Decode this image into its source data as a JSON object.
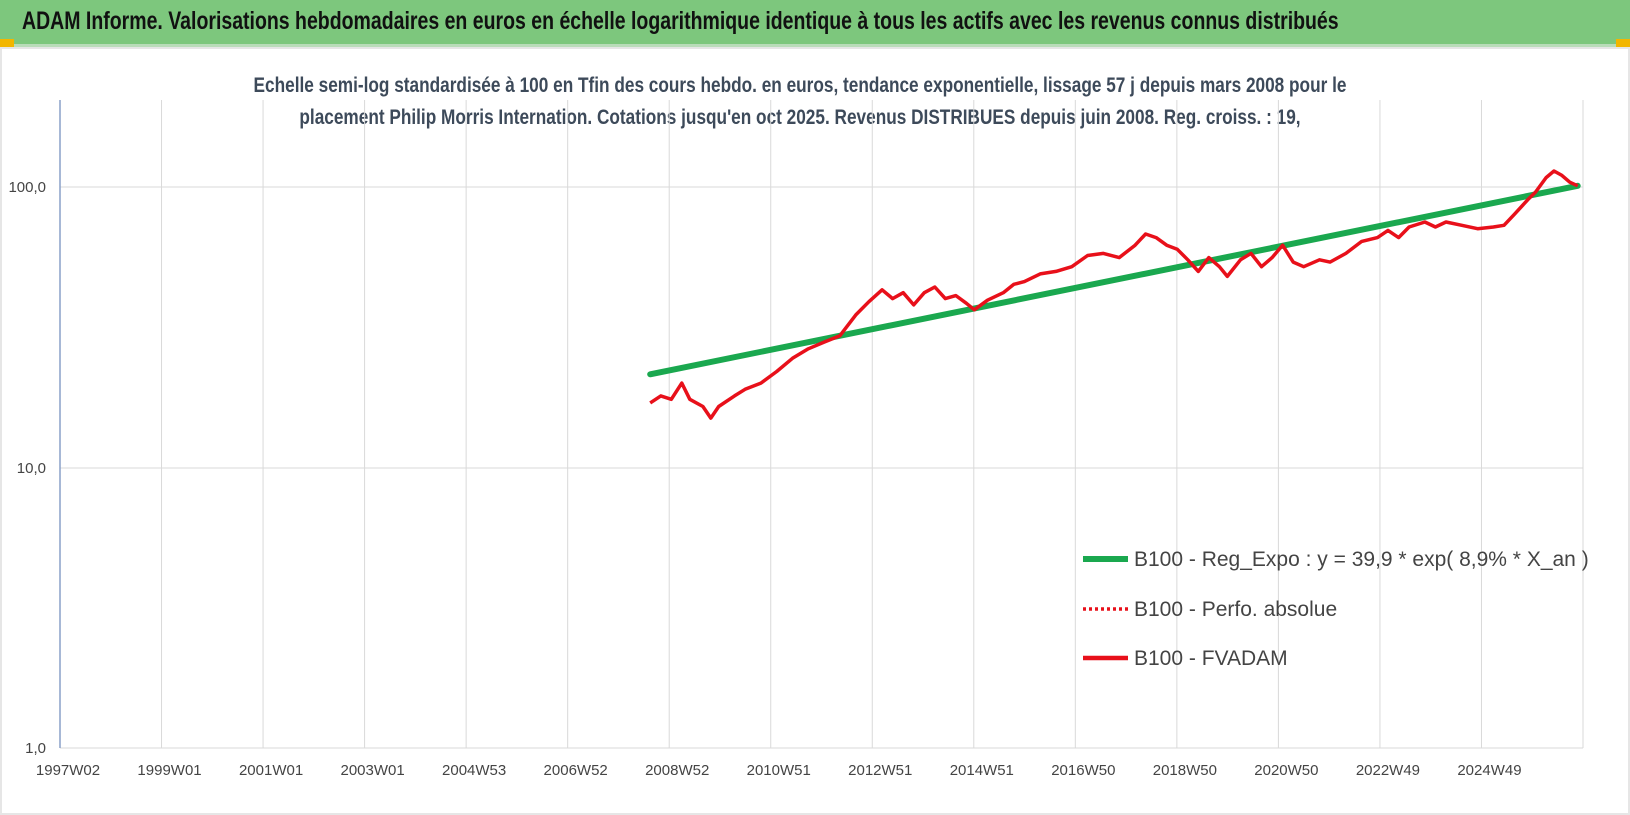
{
  "header": {
    "banner_title": "ADAM Informe. Valorisations hebdomadaires en euros en échelle logarithmique identique à tous les actifs avec les revenus connus distribués"
  },
  "colors": {
    "banner_bg": "#7dc77d",
    "trend": "#1aa84f",
    "fvadam": "#e8101a",
    "perfo": "#e8101a",
    "grid": "#d9d9d9",
    "axis": "#8aa0c8"
  },
  "chart_data": {
    "type": "line",
    "title_lines": [
      "Echelle semi-log standardisée à 100 en Tfin des cours hebdo. en euros, tendance exponentielle, lissage 57 j depuis mars 2008 pour le",
      "placement Philip Morris Internation. Cotations jusqu'en oct 2025.  Revenus DISTRIBUES depuis juin 2008. Reg. croiss. : 19,"
    ],
    "y_scale": "log",
    "ylim": [
      1,
      200
    ],
    "y_ticks": [
      "1,0",
      "10,0",
      "100,0"
    ],
    "x_range_years": [
      1997.0,
      2025.9
    ],
    "x_tick_labels": [
      "1997W02",
      "1999W01",
      "2001W01",
      "2003W01",
      "2004W53",
      "2006W52",
      "2008W52",
      "2010W51",
      "2012W51",
      "2014W51",
      "2016W50",
      "2018W50",
      "2020W50",
      "2022W49",
      "2024W49"
    ],
    "grid": "vertical and horizontal",
    "legend_position": "bottom-right",
    "series": [
      {
        "name": "B100 - Reg_Expo : y = 39,9 * exp( 8,9% *  X_an )",
        "style": "solid-thick",
        "points": [
          [
            2008.2,
            21.5
          ],
          [
            2025.8,
            101
          ]
        ]
      },
      {
        "name": "B100 - Perfo. absolue",
        "style": "dotted",
        "points": []
      },
      {
        "name": "B100 - FVADAM",
        "style": "solid",
        "points": [
          [
            2008.2,
            17.0
          ],
          [
            2008.4,
            18.0
          ],
          [
            2008.6,
            17.5
          ],
          [
            2008.8,
            20.0
          ],
          [
            2008.95,
            17.5
          ],
          [
            2009.2,
            16.5
          ],
          [
            2009.35,
            15.0
          ],
          [
            2009.5,
            16.5
          ],
          [
            2009.8,
            18.0
          ],
          [
            2010.0,
            19.0
          ],
          [
            2010.3,
            20.0
          ],
          [
            2010.6,
            22.0
          ],
          [
            2010.9,
            24.5
          ],
          [
            2011.2,
            26.5
          ],
          [
            2011.5,
            28.0
          ],
          [
            2011.8,
            29.5
          ],
          [
            2012.1,
            35.0
          ],
          [
            2012.35,
            39.0
          ],
          [
            2012.6,
            43.0
          ],
          [
            2012.8,
            40.0
          ],
          [
            2013.0,
            42.0
          ],
          [
            2013.2,
            38.0
          ],
          [
            2013.4,
            42.0
          ],
          [
            2013.6,
            44.0
          ],
          [
            2013.8,
            40.0
          ],
          [
            2014.0,
            41.0
          ],
          [
            2014.2,
            38.5
          ],
          [
            2014.35,
            36.5
          ],
          [
            2014.6,
            39.5
          ],
          [
            2014.9,
            42.0
          ],
          [
            2015.1,
            45.0
          ],
          [
            2015.3,
            46.0
          ],
          [
            2015.6,
            49.0
          ],
          [
            2015.9,
            50.0
          ],
          [
            2016.2,
            52.0
          ],
          [
            2016.5,
            57.0
          ],
          [
            2016.8,
            58.0
          ],
          [
            2017.1,
            56.0
          ],
          [
            2017.4,
            62.0
          ],
          [
            2017.6,
            68.0
          ],
          [
            2017.8,
            66.0
          ],
          [
            2018.0,
            62.0
          ],
          [
            2018.2,
            60.0
          ],
          [
            2018.4,
            55.0
          ],
          [
            2018.6,
            50.0
          ],
          [
            2018.8,
            56.0
          ],
          [
            2019.0,
            52.0
          ],
          [
            2019.15,
            48.0
          ],
          [
            2019.4,
            55.0
          ],
          [
            2019.6,
            58.0
          ],
          [
            2019.8,
            52.0
          ],
          [
            2020.0,
            56.0
          ],
          [
            2020.2,
            62.0
          ],
          [
            2020.4,
            54.0
          ],
          [
            2020.6,
            52.0
          ],
          [
            2020.9,
            55.0
          ],
          [
            2021.1,
            54.0
          ],
          [
            2021.4,
            58.0
          ],
          [
            2021.7,
            64.0
          ],
          [
            2022.0,
            66.0
          ],
          [
            2022.2,
            70.0
          ],
          [
            2022.4,
            66.0
          ],
          [
            2022.6,
            72.0
          ],
          [
            2022.9,
            75.0
          ],
          [
            2023.1,
            72.0
          ],
          [
            2023.3,
            75.0
          ],
          [
            2023.6,
            73.0
          ],
          [
            2023.9,
            71.0
          ],
          [
            2024.2,
            72.0
          ],
          [
            2024.4,
            73.0
          ],
          [
            2024.6,
            80.0
          ],
          [
            2024.85,
            90.0
          ],
          [
            2025.0,
            96.0
          ],
          [
            2025.2,
            108.0
          ],
          [
            2025.35,
            114.0
          ],
          [
            2025.5,
            110.0
          ],
          [
            2025.65,
            104.0
          ],
          [
            2025.8,
            101.0
          ]
        ]
      }
    ]
  }
}
